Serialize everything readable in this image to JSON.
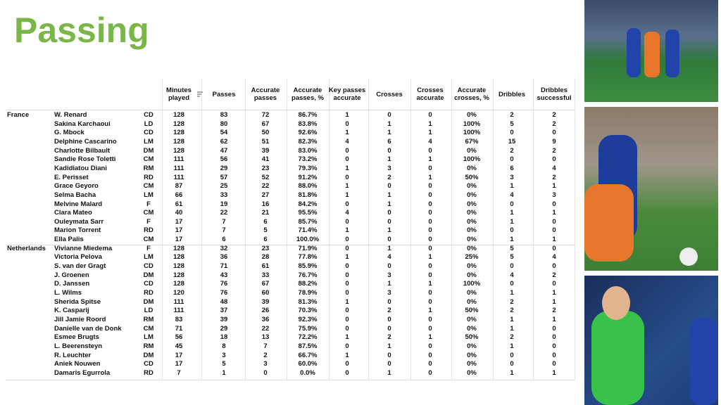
{
  "title": "Passing",
  "table": {
    "columns": [
      "Minutes played",
      "Passes",
      "Accurate passes",
      "Accurate passes, %",
      "Key passes accurate",
      "Crosses",
      "Crosses accurate",
      "Accurate crosses, %",
      "Dribbles",
      "Dribbles successful"
    ],
    "groups": [
      {
        "team": "France",
        "rows": [
          [
            "W. Renard",
            "CD",
            "128",
            "83",
            "72",
            "86.7%",
            "1",
            "0",
            "0",
            "0%",
            "2",
            "2"
          ],
          [
            "Sakina Karchaoui",
            "LD",
            "128",
            "80",
            "67",
            "83.8%",
            "0",
            "1",
            "1",
            "100%",
            "5",
            "2"
          ],
          [
            "G. Mbock",
            "CD",
            "128",
            "54",
            "50",
            "92.6%",
            "1",
            "1",
            "1",
            "100%",
            "0",
            "0"
          ],
          [
            "Delphine Cascarino",
            "LM",
            "128",
            "62",
            "51",
            "82.3%",
            "4",
            "6",
            "4",
            "67%",
            "15",
            "9"
          ],
          [
            "Charlotte Bilbault",
            "DM",
            "128",
            "47",
            "39",
            "83.0%",
            "0",
            "0",
            "0",
            "0%",
            "2",
            "2"
          ],
          [
            "Sandie Rose Toletti",
            "CM",
            "111",
            "56",
            "41",
            "73.2%",
            "0",
            "1",
            "1",
            "100%",
            "0",
            "0"
          ],
          [
            "Kadidiatou Diani",
            "RM",
            "111",
            "29",
            "23",
            "79.3%",
            "1",
            "3",
            "0",
            "0%",
            "6",
            "4"
          ],
          [
            "E. Perisset",
            "RD",
            "111",
            "57",
            "52",
            "91.2%",
            "0",
            "2",
            "1",
            "50%",
            "3",
            "2"
          ],
          [
            "Grace Geyoro",
            "CM",
            "87",
            "25",
            "22",
            "88.0%",
            "1",
            "0",
            "0",
            "0%",
            "1",
            "1"
          ],
          [
            "Selma Bacha",
            "LM",
            "66",
            "33",
            "27",
            "81.8%",
            "1",
            "1",
            "0",
            "0%",
            "4",
            "3"
          ],
          [
            "Melvine Malard",
            "F",
            "61",
            "19",
            "16",
            "84.2%",
            "0",
            "1",
            "0",
            "0%",
            "0",
            "0"
          ],
          [
            "Clara Mateo",
            "CM",
            "40",
            "22",
            "21",
            "95.5%",
            "4",
            "0",
            "0",
            "0%",
            "1",
            "1"
          ],
          [
            "Ouleymata Sarr",
            "F",
            "17",
            "7",
            "6",
            "85.7%",
            "0",
            "0",
            "0",
            "0%",
            "1",
            "0"
          ],
          [
            "Marion Torrent",
            "RD",
            "17",
            "7",
            "5",
            "71.4%",
            "1",
            "1",
            "0",
            "0%",
            "0",
            "0"
          ],
          [
            "Ella Palis",
            "CM",
            "17",
            "6",
            "6",
            "100.0%",
            "0",
            "0",
            "0",
            "0%",
            "1",
            "1"
          ]
        ]
      },
      {
        "team": "Netherlands",
        "rows": [
          [
            "Vivianne Miedema",
            "F",
            "128",
            "32",
            "23",
            "71.9%",
            "0",
            "1",
            "0",
            "0%",
            "5",
            "0"
          ],
          [
            "Victoria Pelova",
            "LM",
            "128",
            "36",
            "28",
            "77.8%",
            "1",
            "4",
            "1",
            "25%",
            "5",
            "4"
          ],
          [
            "S. van der Gragt",
            "CD",
            "128",
            "71",
            "61",
            "85.9%",
            "0",
            "0",
            "0",
            "0%",
            "0",
            "0"
          ],
          [
            "J. Groenen",
            "DM",
            "128",
            "43",
            "33",
            "76.7%",
            "0",
            "3",
            "0",
            "0%",
            "4",
            "2"
          ],
          [
            "D. Janssen",
            "CD",
            "128",
            "76",
            "67",
            "88.2%",
            "0",
            "1",
            "1",
            "100%",
            "0",
            "0"
          ],
          [
            "L. Wilms",
            "RD",
            "120",
            "76",
            "60",
            "78.9%",
            "0",
            "3",
            "0",
            "0%",
            "1",
            "1"
          ],
          [
            "Sherida Spitse",
            "DM",
            "111",
            "48",
            "39",
            "81.3%",
            "1",
            "0",
            "0",
            "0%",
            "2",
            "1"
          ],
          [
            "K. Casparij",
            "LD",
            "111",
            "37",
            "26",
            "70.3%",
            "0",
            "2",
            "1",
            "50%",
            "2",
            "2"
          ],
          [
            "Jill Jamie Roord",
            "RM",
            "83",
            "39",
            "36",
            "92.3%",
            "0",
            "0",
            "0",
            "0%",
            "1",
            "1"
          ],
          [
            "Danielle van de Donk",
            "CM",
            "71",
            "29",
            "22",
            "75.9%",
            "0",
            "0",
            "0",
            "0%",
            "1",
            "0"
          ],
          [
            "Esmee Brugts",
            "LM",
            "56",
            "18",
            "13",
            "72.2%",
            "1",
            "2",
            "1",
            "50%",
            "2",
            "0"
          ],
          [
            "L. Beerensteyn",
            "RM",
            "45",
            "8",
            "7",
            "87.5%",
            "0",
            "1",
            "0",
            "0%",
            "1",
            "0"
          ],
          [
            "R. Leuchter",
            "DM",
            "17",
            "3",
            "2",
            "66.7%",
            "1",
            "0",
            "0",
            "0%",
            "0",
            "0"
          ],
          [
            "Aniek Nouwen",
            "CD",
            "17",
            "5",
            "3",
            "60.0%",
            "0",
            "0",
            "0",
            "0%",
            "0",
            "0"
          ],
          [
            "Damaris Egurrola",
            "RD",
            "7",
            "1",
            "0",
            "0.0%",
            "0",
            "1",
            "0",
            "0%",
            "1",
            "1"
          ]
        ]
      }
    ]
  }
}
